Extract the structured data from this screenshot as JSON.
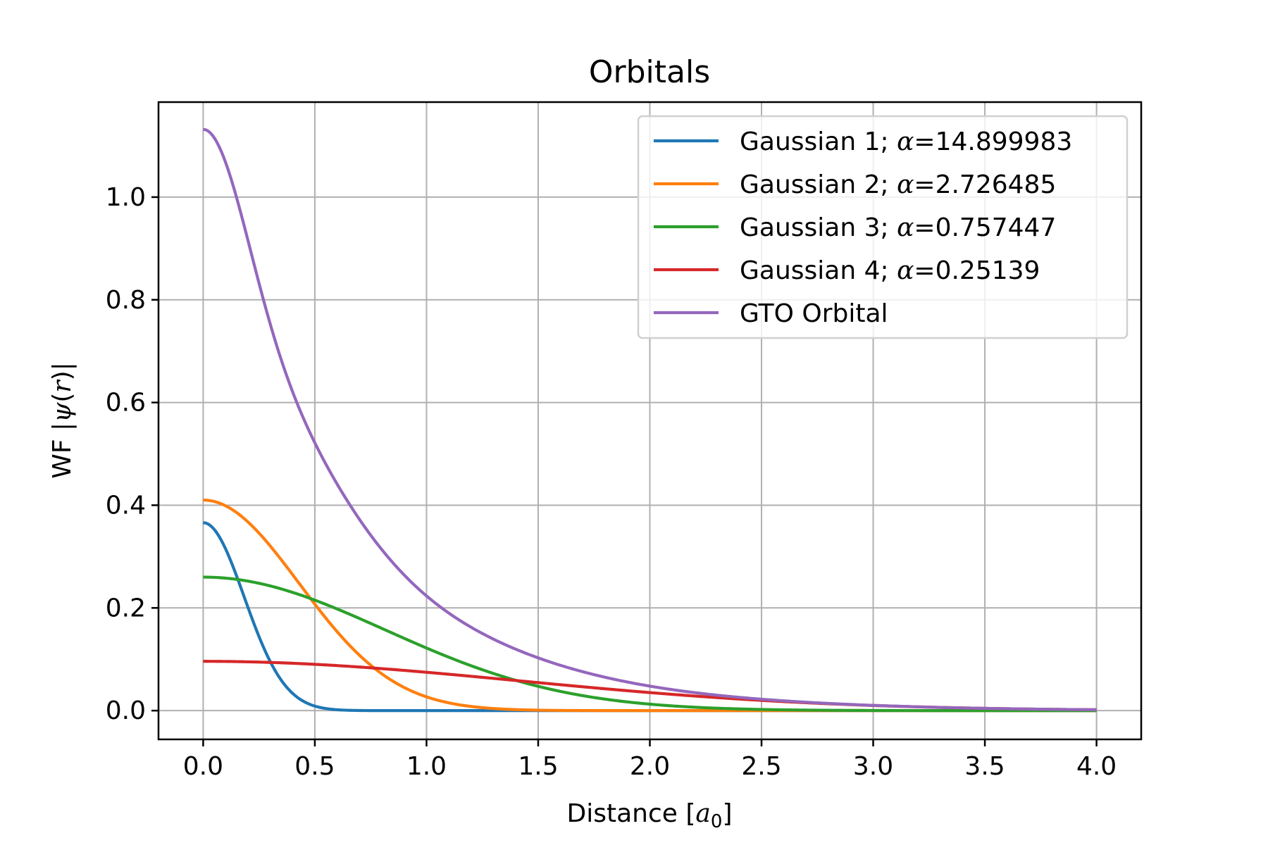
{
  "chart_data": {
    "type": "line",
    "title": "Orbitals",
    "xlabel": "Distance",
    "xlabel_unit_symbol": "a",
    "xlabel_unit_subscript": "0",
    "ylabel_prefix": "WF",
    "ylabel_symbol": "ψ",
    "ylabel_arg": "r",
    "xlim": [
      -0.2,
      4.2
    ],
    "ylim": [
      -0.056,
      1.185
    ],
    "grid": true,
    "legend_position": "top-right",
    "xticks": [
      0.0,
      0.5,
      1.0,
      1.5,
      2.0,
      2.5,
      3.0,
      3.5,
      4.0
    ],
    "xtick_labels": [
      "0.0",
      "0.5",
      "1.0",
      "1.5",
      "2.0",
      "2.5",
      "3.0",
      "3.5",
      "4.0"
    ],
    "yticks": [
      0.0,
      0.2,
      0.4,
      0.6,
      0.8,
      1.0
    ],
    "ytick_labels": [
      "0.0",
      "0.2",
      "0.4",
      "0.6",
      "0.8",
      "1.0"
    ],
    "x_range": [
      0,
      4
    ],
    "series": [
      {
        "name_prefix": "Gaussian 1; ",
        "name_symbol": "α",
        "name_value": "=14.899983",
        "alpha": 14.899983,
        "amplitude": 0.366,
        "color": "#1f77b4"
      },
      {
        "name_prefix": "Gaussian 2; ",
        "name_symbol": "α",
        "name_value": "=2.726485",
        "alpha": 2.726485,
        "amplitude": 0.41,
        "color": "#ff7f0e"
      },
      {
        "name_prefix": "Gaussian 3; ",
        "name_symbol": "α",
        "name_value": "=0.757447",
        "alpha": 0.757447,
        "amplitude": 0.26,
        "color": "#2ca02c"
      },
      {
        "name_prefix": "Gaussian 4; ",
        "name_symbol": "α",
        "name_value": "=0.25139",
        "alpha": 0.25139,
        "amplitude": 0.096,
        "color": "#d62728"
      },
      {
        "name_prefix": "GTO Orbital",
        "name_symbol": "",
        "name_value": "",
        "sum_of_previous": true,
        "color": "#9467bd"
      }
    ]
  }
}
